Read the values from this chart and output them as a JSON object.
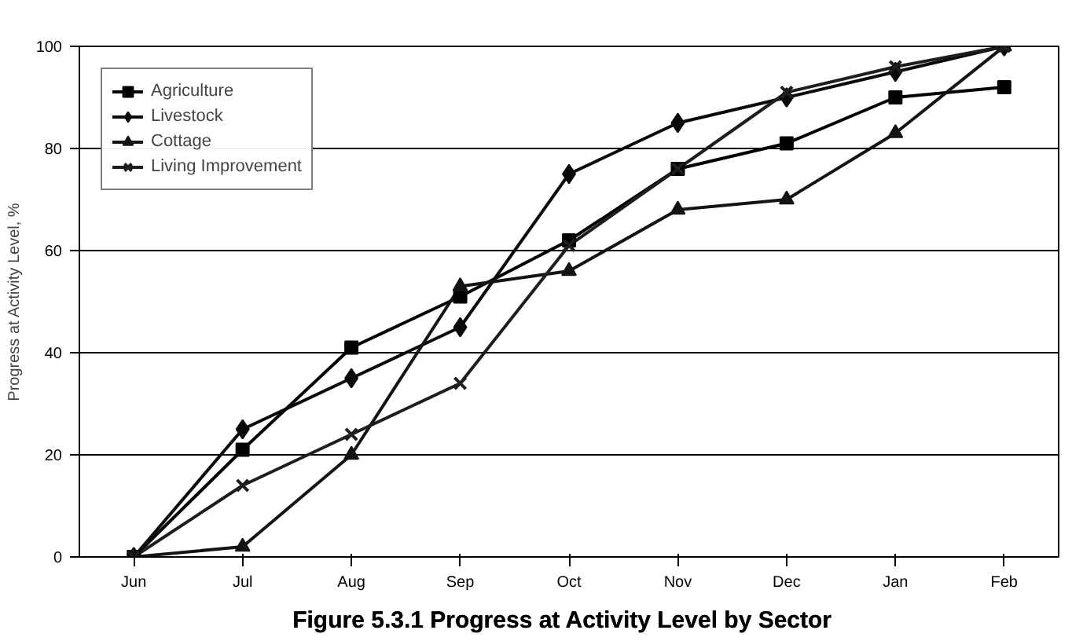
{
  "chart_data": {
    "type": "line",
    "title": "Figure 5.3.1   Progress at Activity Level by Sector",
    "ylabel": "Progress at Activity Level, %",
    "categories": [
      "Jun",
      "Jul",
      "Aug",
      "Sep",
      "Oct",
      "Nov",
      "Dec",
      "Jan",
      "Feb"
    ],
    "series": [
      {
        "name": "Agriculture",
        "color": "#000000",
        "marker": "square",
        "values": [
          0,
          21,
          41,
          51,
          62,
          76,
          81,
          90,
          92
        ]
      },
      {
        "name": "Livestock",
        "color": "#0a0a0a",
        "marker": "diamond",
        "values": [
          0,
          25,
          35,
          45,
          75,
          85,
          90,
          95,
          100
        ]
      },
      {
        "name": "Cottage",
        "color": "#141414",
        "marker": "triangle",
        "values": [
          0,
          2,
          20,
          53,
          56,
          68,
          70,
          83,
          100
        ]
      },
      {
        "name": "Living Improvement",
        "color": "#1e1e1e",
        "marker": "cross",
        "values": [
          0,
          14,
          24,
          34,
          61,
          76,
          91,
          96,
          100
        ]
      }
    ],
    "ylim": [
      0,
      100
    ],
    "yticks": [
      0,
      20,
      40,
      60,
      80,
      100
    ],
    "grid": "y",
    "legend": "top left",
    "line_style": "solid"
  }
}
